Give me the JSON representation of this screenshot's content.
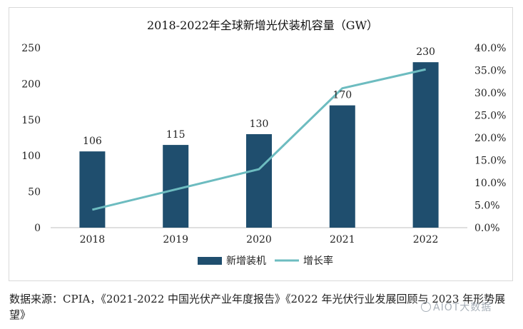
{
  "chart_data": {
    "type": "bar",
    "title": "2018-2022年全球新增光伏装机容量（GW）",
    "categories": [
      "2018",
      "2019",
      "2020",
      "2021",
      "2022"
    ],
    "series": [
      {
        "name": "新增装机",
        "type": "bar",
        "axis": "left",
        "values": [
          106,
          115,
          130,
          170,
          230
        ],
        "color": "#1f4e6e"
      },
      {
        "name": "增长率",
        "type": "line",
        "axis": "right",
        "values": [
          4.0,
          8.5,
          13.0,
          31.0,
          35.2
        ],
        "color": "#6dbcc0"
      }
    ],
    "y_left": {
      "min": 0,
      "max": 250,
      "ticks": [
        0,
        50,
        100,
        150,
        200,
        250
      ]
    },
    "y_right": {
      "min": 0,
      "max": 40,
      "ticks": [
        "0.0%",
        "5.0%",
        "10.0%",
        "15.0%",
        "20.0%",
        "25.0%",
        "30.0%",
        "35.0%",
        "40.0%"
      ]
    },
    "data_labels": [
      "106",
      "115",
      "130",
      "170",
      "230"
    ],
    "legend_position": "bottom",
    "grid": false
  },
  "source": "数据来源：CPIA，《2021-2022 中国光伏产业年度报告》《2022 年光伏行业发展回顾与 2023 年形势展望》",
  "watermark": "AIOT大数据"
}
